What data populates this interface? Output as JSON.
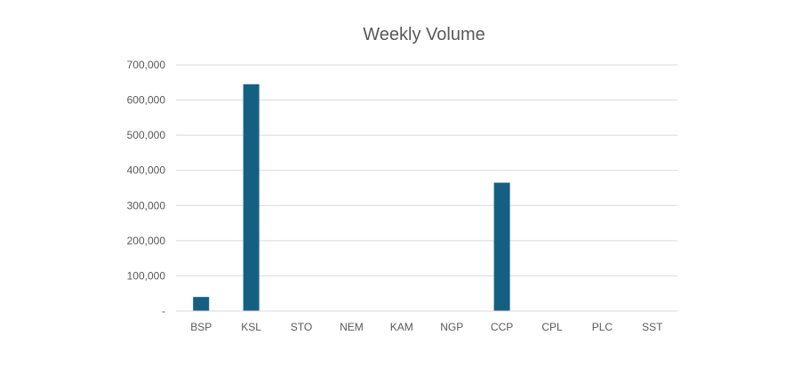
{
  "chart_data": {
    "type": "bar",
    "title": "Weekly Volume",
    "xlabel": "",
    "ylabel": "",
    "categories": [
      "BSP",
      "KSL",
      "STO",
      "NEM",
      "KAM",
      "NGP",
      "CCP",
      "CPL",
      "PLC",
      "SST"
    ],
    "values": [
      40000,
      645000,
      0,
      0,
      0,
      0,
      365000,
      0,
      0,
      0
    ],
    "ylim": [
      0,
      700000
    ],
    "yticks": [
      0,
      100000,
      200000,
      300000,
      400000,
      500000,
      600000,
      700000
    ],
    "ytick_labels": [
      "-",
      "100,000",
      "200,000",
      "300,000",
      "400,000",
      "500,000",
      "600,000",
      "700,000"
    ],
    "grid": true,
    "legend": "none",
    "bar_color": "#156082",
    "grid_color": "#d9d9d9",
    "text_color": "#595959"
  }
}
